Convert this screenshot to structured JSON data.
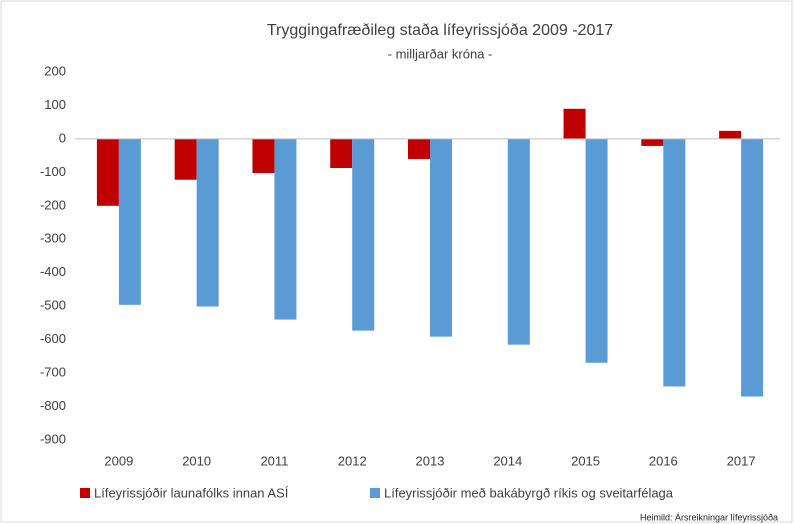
{
  "chart_data": {
    "type": "bar",
    "title": "Tryggingafræðileg staða lífeyrissjóða 2009 -2017",
    "subtitle": "- milljarðar króna -",
    "source": "Heimild: Ársreikningar lífeyrissjóða",
    "categories": [
      "2009",
      "2010",
      "2011",
      "2012",
      "2013",
      "2014",
      "2015",
      "2016",
      "2017"
    ],
    "series": [
      {
        "name": "Lífeyrissjóðir launafólks innan ASÍ",
        "color": "#c00000",
        "values": [
          -200,
          -122,
          -102,
          -87,
          -60,
          0,
          90,
          -21,
          24
        ]
      },
      {
        "name": "Lífeyrissjóðir með bakábyrgð ríkis og sveitarfélaga",
        "color": "#5b9bd5",
        "values": [
          -496,
          -501,
          -540,
          -573,
          -591,
          -615,
          -669,
          -740,
          -770
        ]
      }
    ],
    "ylim": [
      -900,
      200
    ],
    "yticks": [
      -900,
      -800,
      -700,
      -600,
      -500,
      -400,
      -300,
      -200,
      -100,
      0,
      100,
      200
    ],
    "grid": false,
    "legend": "bottom"
  }
}
